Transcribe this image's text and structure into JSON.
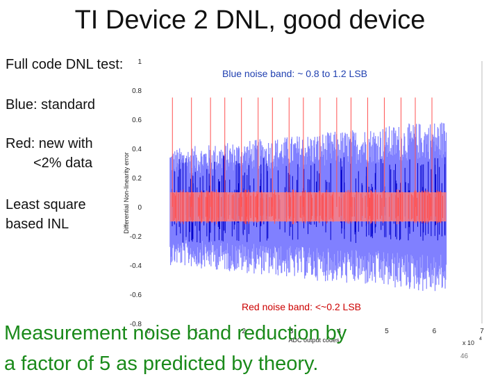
{
  "slide": {
    "title": "TI Device 2 DNL, good device",
    "bullets": [
      "Full code DNL test:",
      "Blue: standard",
      "Red: new with",
      "<2% data",
      "Least square",
      "based INL"
    ],
    "blue_note": "Blue noise band: ~ 0.8 to 1.2 LSB",
    "red_note": "Red noise band: <~0.2 LSB",
    "conclusion_line1": "Measurement noise band reduction by",
    "conclusion_line2": "a factor of 5 as predicted by theory.",
    "page_number": "46"
  },
  "colors": {
    "blue_band": "#8080ff",
    "blue_spikes": "#0000cc",
    "red_band": "#ff8080",
    "red_spikes": "#ff5050",
    "note_blue": "#1f3fb0",
    "note_red": "#cc0000",
    "conclusion": "#1a8a1a"
  },
  "chart_data": {
    "type": "line",
    "ylabel": "Differential Non-linearity error",
    "xlabel": "ADC output codes",
    "x_multiplier_label": "x 10",
    "x_multiplier_exponent": "4",
    "y_tick_labels": [
      "1",
      "0.8",
      "0.6",
      "0.4",
      "0.2",
      "0",
      "-0.2",
      "-0.4",
      "-0.6",
      "-0.8"
    ],
    "x_tick_labels": [
      "0",
      "1",
      "2",
      "3",
      "4",
      "5",
      "6",
      "7"
    ],
    "xlim": [
      0,
      7
    ],
    "ylim": [
      -0.8,
      1
    ],
    "series": [
      {
        "name": "Blue: standard",
        "x_range": [
          0.45,
          6.25
        ],
        "band_envelope_start": 0.4,
        "band_envelope_end": 0.6,
        "color": "#8080ff"
      },
      {
        "name": "Red: new with <2% data",
        "x_range": [
          0.45,
          6.25
        ],
        "band_halfwidth": 0.1,
        "color": "#ff8080"
      }
    ],
    "red_spikes_x": [
      0.5,
      0.9,
      1.3,
      1.6,
      1.95,
      2.3,
      2.6,
      2.95,
      3.25,
      3.6,
      3.95,
      4.25,
      4.6,
      4.95,
      5.3,
      5.6,
      5.95
    ],
    "red_spike_top": 0.75
  }
}
